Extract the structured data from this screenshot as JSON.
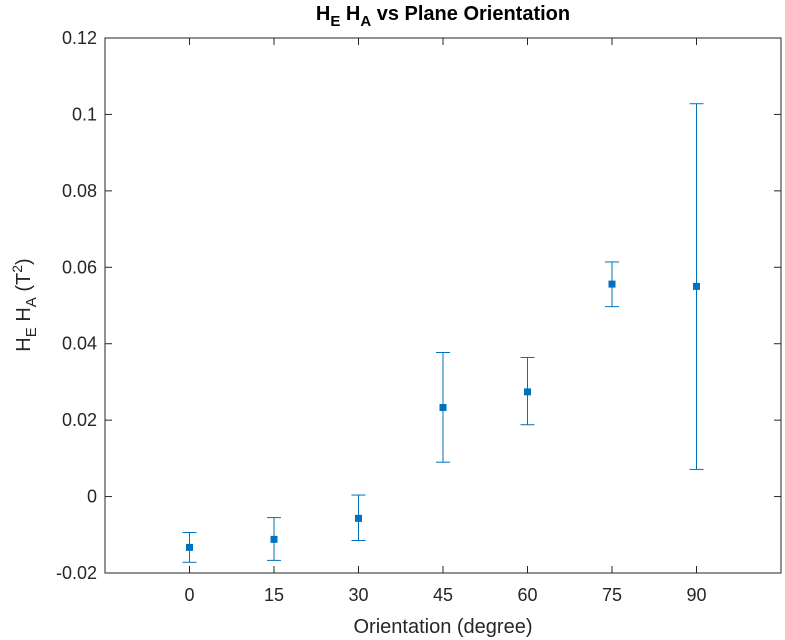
{
  "chart_data": {
    "type": "scatter",
    "title": {
      "main": "H",
      "sub1": "E",
      "mid": " H",
      "sub2": "A",
      "rest": " vs Plane Orientation"
    },
    "xlabel": "Orientation (degree)",
    "ylabel": {
      "base1": "H",
      "sub1": "E",
      "base2": " H",
      "sub2": "A",
      "open": " (T",
      "sup": "2",
      "close": ")"
    },
    "x_ticks": [
      "0",
      "15",
      "30",
      "45",
      "60",
      "75",
      "90"
    ],
    "y_ticks": [
      "-0.02",
      "0",
      "0.02",
      "0.04",
      "0.06",
      "0.08",
      "0.1",
      "0.12"
    ],
    "xlim": [
      -15,
      105
    ],
    "ylim": [
      -0.02,
      0.12
    ],
    "grid": false,
    "marker": "square",
    "color": "#0072BD",
    "series": [
      {
        "x": [
          0,
          15,
          30,
          45,
          60,
          75,
          90
        ],
        "y": [
          -0.0133,
          -0.0112,
          -0.0057,
          0.0233,
          0.0274,
          0.0556,
          0.055
        ],
        "err_low": [
          -0.0172,
          -0.0167,
          -0.0115,
          0.009,
          0.0188,
          0.0497,
          0.0071
        ],
        "err_high": [
          -0.0094,
          -0.0055,
          0.0004,
          0.0377,
          0.0364,
          0.0614,
          0.1028
        ]
      }
    ]
  }
}
